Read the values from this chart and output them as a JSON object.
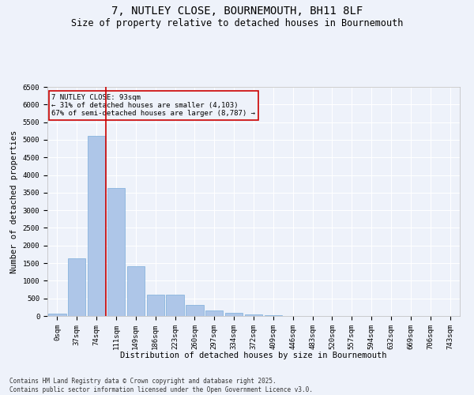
{
  "title": "7, NUTLEY CLOSE, BOURNEMOUTH, BH11 8LF",
  "subtitle": "Size of property relative to detached houses in Bournemouth",
  "xlabel": "Distribution of detached houses by size in Bournemouth",
  "ylabel": "Number of detached properties",
  "categories": [
    "0sqm",
    "37sqm",
    "74sqm",
    "111sqm",
    "149sqm",
    "186sqm",
    "223sqm",
    "260sqm",
    "297sqm",
    "334sqm",
    "372sqm",
    "409sqm",
    "446sqm",
    "483sqm",
    "520sqm",
    "557sqm",
    "594sqm",
    "632sqm",
    "669sqm",
    "706sqm",
    "743sqm"
  ],
  "bar_values": [
    70,
    1640,
    5100,
    3620,
    1420,
    615,
    615,
    310,
    155,
    90,
    50,
    25,
    10,
    0,
    0,
    0,
    0,
    0,
    0,
    0,
    0
  ],
  "bar_color": "#aec6e8",
  "bar_edge_color": "#7aadda",
  "vline_x_index": 2.49,
  "annotation_title": "7 NUTLEY CLOSE: 93sqm",
  "annotation_line1": "← 31% of detached houses are smaller (4,103)",
  "annotation_line2": "67% of semi-detached houses are larger (8,787) →",
  "annotation_box_color": "#cc0000",
  "ylim": [
    0,
    6500
  ],
  "yticks": [
    0,
    500,
    1000,
    1500,
    2000,
    2500,
    3000,
    3500,
    4000,
    4500,
    5000,
    5500,
    6000,
    6500
  ],
  "footer_line1": "Contains HM Land Registry data © Crown copyright and database right 2025.",
  "footer_line2": "Contains public sector information licensed under the Open Government Licence v3.0.",
  "background_color": "#eef2fa",
  "grid_color": "#ffffff",
  "title_fontsize": 10,
  "subtitle_fontsize": 8.5,
  "axis_label_fontsize": 7.5,
  "tick_fontsize": 6.5,
  "annot_fontsize": 6.5,
  "footer_fontsize": 5.5
}
